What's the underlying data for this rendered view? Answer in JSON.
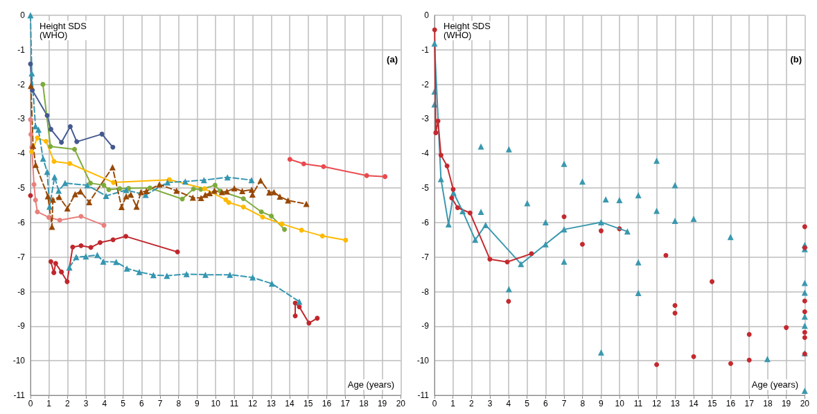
{
  "chart_data": [
    {
      "type": "line",
      "title": "(a)",
      "xlabel": "Age (years)",
      "ylabel": "Height SDS\n(WHO)",
      "xlim": [
        0,
        20
      ],
      "xticks": [
        0,
        1,
        2,
        3,
        4,
        5,
        6,
        7,
        8,
        9,
        10,
        11,
        12,
        13,
        14,
        15,
        16,
        17,
        18,
        19,
        20
      ],
      "ylim": [
        -11,
        0
      ],
      "yticks": [
        -11,
        -10,
        -9,
        -8,
        -7,
        -6,
        -5,
        -4,
        -3,
        -2,
        -1,
        0
      ],
      "grid": true,
      "series": [
        {
          "color": "#44598f",
          "marker": "circle",
          "line_style": "solid",
          "x": [
            0,
            0.1,
            0.9,
            1.1,
            1.67,
            2.15,
            2.5,
            3.86,
            4.45
          ],
          "values": [
            -1.41,
            -2.17,
            -2.9,
            -3.3,
            -3.68,
            -3.22,
            -3.66,
            -3.44,
            -3.82
          ]
        },
        {
          "color": "#7eab3c",
          "marker": "circle",
          "line_style": "solid",
          "x": [
            0.67,
            1.08,
            2.38,
            3.24,
            3.96,
            4.23,
            4.82,
            5.3,
            6.45,
            8.2,
            8.8,
            9.2,
            9.97,
            10.24,
            11.5,
            12.47,
            13.01,
            13.72
          ],
          "values": [
            -2.0,
            -3.8,
            -3.88,
            -4.86,
            -4.92,
            -5.05,
            -5.02,
            -5.01,
            -5.0,
            -5.32,
            -5.03,
            -5.04,
            -4.92,
            -5.09,
            -5.31,
            -5.69,
            -5.81,
            -6.2
          ]
        },
        {
          "color": "#ffb900",
          "marker": "circle",
          "line_style": "solid",
          "x": [
            0.06,
            0.37,
            0.84,
            1.27,
            2.12,
            4.48,
            7.5,
            9.4,
            10.55,
            10.71,
            11.5,
            12.54,
            13.58,
            14.64,
            15.77,
            17.02
          ],
          "values": [
            -3.95,
            -3.55,
            -3.65,
            -4.23,
            -4.29,
            -4.84,
            -4.76,
            -5.02,
            -5.34,
            -5.42,
            -5.55,
            -5.84,
            -6.04,
            -6.22,
            -6.39,
            -6.51
          ]
        },
        {
          "color": "#e8807d",
          "marker": "circle",
          "line_style": "solid",
          "x": [
            0,
            0.02,
            0.07,
            0.19,
            0.27,
            0.37,
            0.99,
            1.58,
            2.73,
            3.97
          ],
          "values": [
            -3.02,
            -3.45,
            -3.82,
            -4.9,
            -5.35,
            -5.69,
            -5.85,
            -5.93,
            -5.82,
            -6.08
          ]
        },
        {
          "color": "#c0272d",
          "marker": "circle",
          "line_style": "solid",
          "x": [
            0,
            0.5,
            1.1,
            1.26,
            1.36,
            1.67,
            1.98,
            2.28,
            2.73,
            3.26,
            3.76,
            4.46,
            5.15,
            7.94
          ],
          "values": [
            -5.22,
            null,
            -7.13,
            -7.45,
            -7.18,
            -7.43,
            -7.71,
            -6.71,
            -6.67,
            -6.72,
            -6.58,
            -6.5,
            -6.4,
            -6.85
          ]
        },
        {
          "color": "#c0272d",
          "marker": "circle",
          "line_style": "solid",
          "x": [
            14.3,
            14.3,
            14.52,
            15.04,
            15.49
          ],
          "values": [
            -8.7,
            -8.33,
            -8.44,
            -8.91,
            -8.77
          ]
        },
        {
          "color": "#e94a4f",
          "marker": "circle",
          "line_style": "solid",
          "x": [
            14.01,
            14.76,
            15.83,
            18.16,
            19.15
          ],
          "values": [
            -4.17,
            -4.3,
            -4.38,
            -4.64,
            -4.67
          ]
        },
        {
          "color": "#3596b0",
          "marker": "triangle",
          "line_style": "dashed",
          "x": [
            0,
            0.07,
            0.27,
            0.43,
            0.68,
            0.9,
            1.03,
            1.3,
            1.52,
            1.87,
            3.07,
            4.08,
            5.17,
            6.22,
            7.4,
            8.36,
            9.37,
            10.64,
            11.94
          ],
          "values": [
            0,
            -1.68,
            -3.21,
            -3.31,
            -4.15,
            -4.53,
            -5.54,
            -4.68,
            -5.08,
            -4.86,
            -4.92,
            -5.23,
            -5.06,
            -5.2,
            -4.84,
            -4.81,
            -4.77,
            -4.69,
            -4.77
          ]
        },
        {
          "color": "#3596b0",
          "marker": "triangle",
          "line_style": "dashed",
          "x": [
            2.1,
            2.47,
            2.99,
            3.61,
            3.93,
            4.63,
            5.21,
            5.88,
            6.64,
            7.37,
            8.43,
            9.45,
            10.77,
            12.0,
            13.04,
            14.52
          ],
          "values": [
            -7.3,
            -7.0,
            -6.98,
            -6.94,
            -7.13,
            -7.14,
            -7.33,
            -7.43,
            -7.52,
            -7.54,
            -7.49,
            -7.51,
            -7.51,
            -7.59,
            -7.77,
            -8.29
          ]
        },
        {
          "color": "#984806",
          "marker": "triangle",
          "line_style": "dashed",
          "x": [
            0.02,
            0.14,
            0.28,
            0.94,
            1.16,
            1.21,
            1.55,
            1.99,
            2.41,
            2.7,
            3.17,
            4.43,
            4.92,
            5.17,
            5.42,
            5.73,
            5.97,
            6.26,
            6.96,
            7.89,
            8.77,
            9.21,
            9.44,
            9.68,
            9.93,
            10.34,
            10.61,
            11.01,
            11.44,
            11.95,
            11.99,
            12.43,
            12.9,
            13.15,
            13.47,
            13.91,
            14.9
          ],
          "values": [
            -2.04,
            -3.78,
            -4.33,
            -5.24,
            -6.12,
            -5.34,
            -5.26,
            -5.59,
            -5.18,
            -5.1,
            -5.41,
            -4.4,
            -5.55,
            -5.24,
            -5.19,
            -5.54,
            -5.12,
            -5.09,
            -4.9,
            -5.08,
            -5.28,
            -5.29,
            -5.2,
            -5.15,
            -5.08,
            -5.12,
            -5.1,
            -5.01,
            -5.09,
            -5.05,
            -5.19,
            -4.78,
            -5.13,
            -5.12,
            -5.25,
            -5.36,
            -5.46
          ]
        }
      ]
    },
    {
      "type": "line",
      "title": "(b)",
      "xlabel": "Age (years)",
      "ylabel": "Height SDS\n(WHO)",
      "xlim": [
        0,
        20
      ],
      "xticks": [
        0,
        1,
        2,
        3,
        4,
        5,
        6,
        7,
        8,
        9,
        10,
        11,
        12,
        13,
        14,
        15,
        16,
        17,
        18,
        19,
        20
      ],
      "ylim": [
        -11,
        0
      ],
      "yticks": [
        -11,
        -10,
        -9,
        -8,
        -7,
        -6,
        -5,
        -4,
        -3,
        -2,
        -1,
        0
      ],
      "grid": true,
      "series": [
        {
          "type": "scatter",
          "color": "#3a98ae",
          "marker": "triangle",
          "x": [
            0,
            0,
            2.51,
            4.02,
            2.51,
            5.01,
            6.0,
            7.0,
            7.0,
            7.99,
            9.25,
            9.99,
            4.02,
            9.0,
            12.0,
            12.99,
            11.01,
            12.0,
            12.99,
            14.0,
            15.99,
            11.01,
            11.01,
            17.98,
            20,
            20,
            20,
            20,
            20,
            20,
            20,
            20
          ],
          "values": [
            -2.21,
            -2.58,
            -3.8,
            -3.88,
            -5.69,
            -5.44,
            -5.99,
            -4.3,
            -7.13,
            -4.81,
            -5.33,
            -5.35,
            -7.93,
            -9.76,
            -4.21,
            -4.92,
            -5.21,
            -5.66,
            -5.95,
            -5.89,
            -6.42,
            -7.15,
            -8.04,
            -9.95,
            -6.65,
            -6.77,
            -7.75,
            -8.03,
            -8.72,
            -8.99,
            -9.78,
            -10.87
          ]
        },
        {
          "type": "scatter",
          "color": "#c32a2f",
          "marker": "circle",
          "x": [
            7.0,
            7.99,
            9.0,
            9.99,
            4.0,
            12.5,
            14.99,
            12.99,
            12.99,
            12.0,
            14.0,
            16.0,
            17.0,
            17.0,
            19.0,
            20,
            20,
            20,
            20,
            20,
            20,
            20
          ],
          "values": [
            -5.83,
            -6.63,
            -6.24,
            -6.18,
            -8.28,
            -6.95,
            -7.71,
            -8.4,
            -8.62,
            -10.11,
            -9.88,
            -10.08,
            -9.98,
            -9.24,
            -9.04,
            -6.12,
            -6.73,
            -8.27,
            -8.58,
            -9.18,
            -9.33,
            -9.8
          ]
        },
        {
          "color": "#3a98ae",
          "marker": "triangle",
          "line_style": "solid",
          "x": [
            0,
            0.35,
            0.76,
            1.03,
            1.52,
            2.2,
            2.76,
            4.67,
            6.0,
            7.0,
            9.0,
            10.42
          ],
          "values": [
            -0.82,
            -4.74,
            -6.05,
            -5.14,
            -5.67,
            -6.5,
            -6.07,
            -7.2,
            -6.63,
            -6.2,
            -5.99,
            -6.26
          ]
        },
        {
          "color": "#c32a2f",
          "marker": "circle",
          "line_style": "solid",
          "x": [
            0.01,
            0.07,
            0.19,
            0.35,
            0.68,
            1.01,
            0.93,
            1.25,
            1.92,
            2.99,
            3.93,
            5.24
          ],
          "values": [
            -0.42,
            -3.4,
            -3.06,
            -4.05,
            -4.36,
            -5.04,
            -5.29,
            -5.57,
            -5.72,
            -7.06,
            -7.14,
            -6.9
          ]
        }
      ]
    }
  ]
}
